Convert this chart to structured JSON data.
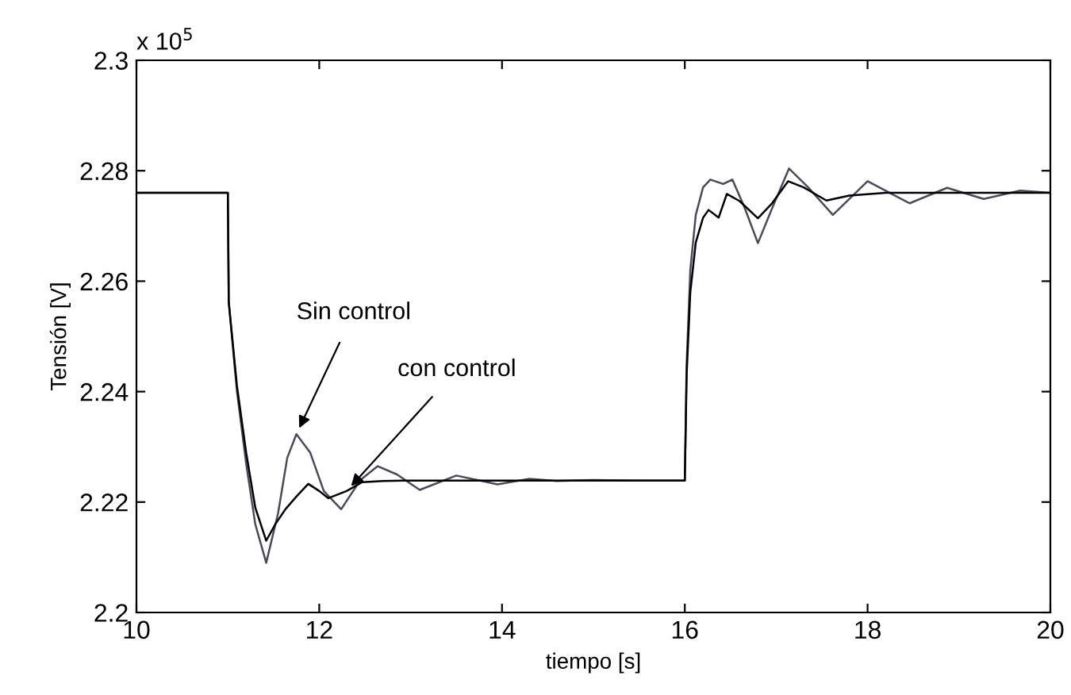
{
  "chart_data": {
    "type": "line",
    "xlabel": "tiempo [s]",
    "ylabel": "Tensión [V]",
    "xlim": [
      10,
      20
    ],
    "xticks": [
      10,
      12,
      14,
      16,
      18,
      20
    ],
    "ylim": [
      2.2,
      2.3
    ],
    "yticks": [
      2.2,
      2.22,
      2.24,
      2.26,
      2.28,
      2.3
    ],
    "grid": false,
    "legend": false,
    "marker": "none",
    "line_style": "solid",
    "annotations": [
      "x 10$^{5}$",
      {
        "text": "Sin control",
        "x": 11.75,
        "y": 2.2323
      },
      {
        "text": "con control",
        "x": 12.3,
        "y": 2.222
      }
    ],
    "series": [
      {
        "color": "#4a4a5a",
        "x": [
          10,
          11,
          11.01,
          11.1,
          11.2,
          11.3,
          11.42,
          11.55,
          11.65,
          11.75,
          11.9,
          12.05,
          12.24,
          12.45,
          12.64,
          12.85,
          13.1,
          13.5,
          13.95,
          14.3,
          14.6,
          15,
          15.5,
          16,
          16.02,
          16.06,
          16.12,
          16.2,
          16.28,
          16.42,
          16.52,
          16.65,
          16.8,
          16.95,
          17.14,
          17.35,
          17.62,
          18.0,
          18.46,
          18.87,
          19.27,
          19.67,
          20
        ],
        "values": [
          2.276,
          2.276,
          2.2562,
          2.24,
          2.227,
          2.216,
          2.209,
          2.218,
          2.228,
          2.2323,
          2.229,
          2.222,
          2.2187,
          2.224,
          2.2265,
          2.225,
          2.2222,
          2.2248,
          2.2232,
          2.2242,
          2.2238,
          2.224,
          2.2239,
          2.2239,
          2.245,
          2.262,
          2.272,
          2.277,
          2.2784,
          2.2776,
          2.2784,
          2.2735,
          2.2669,
          2.273,
          2.2804,
          2.277,
          2.272,
          2.2781,
          2.2741,
          2.2769,
          2.2749,
          2.2764,
          2.276
        ]
      },
      {
        "color": "#000000",
        "x": [
          10,
          11,
          11.01,
          11.1,
          11.2,
          11.3,
          11.42,
          11.52,
          11.63,
          11.75,
          11.88,
          12.0,
          12.1,
          12.3,
          12.47,
          12.7,
          13,
          14,
          15,
          16,
          16.02,
          16.06,
          16.12,
          16.2,
          16.26,
          16.37,
          16.46,
          16.6,
          16.8,
          16.95,
          17.13,
          17.3,
          17.55,
          17.8,
          18.2,
          19,
          20
        ],
        "values": [
          2.276,
          2.276,
          2.2562,
          2.241,
          2.229,
          2.219,
          2.213,
          2.216,
          2.2187,
          2.221,
          2.2233,
          2.222,
          2.2207,
          2.222,
          2.2236,
          2.2238,
          2.2239,
          2.2239,
          2.2239,
          2.2239,
          2.243,
          2.258,
          2.267,
          2.2715,
          2.2729,
          2.2715,
          2.2758,
          2.2745,
          2.2714,
          2.274,
          2.2781,
          2.277,
          2.2746,
          2.2755,
          2.276,
          2.276,
          2.276
        ]
      }
    ]
  }
}
